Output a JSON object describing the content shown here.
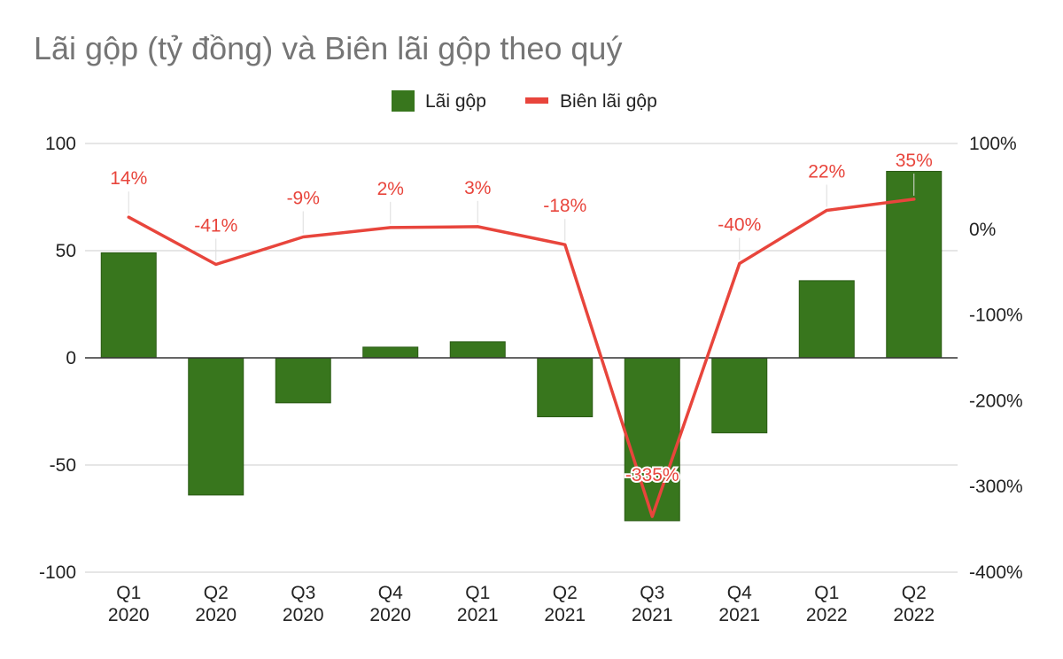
{
  "chart_data": {
    "type": "bar",
    "title": "Lãi gộp (tỷ đồng) và Biên lãi gộp theo quý",
    "categories": [
      [
        "Q1",
        "2020"
      ],
      [
        "Q2",
        "2020"
      ],
      [
        "Q3",
        "2020"
      ],
      [
        "Q4",
        "2020"
      ],
      [
        "Q1",
        "2021"
      ],
      [
        "Q2",
        "2021"
      ],
      [
        "Q3",
        "2021"
      ],
      [
        "Q4",
        "2021"
      ],
      [
        "Q1",
        "2022"
      ],
      [
        "Q2",
        "2022"
      ]
    ],
    "series": [
      {
        "name": "Lãi gộp",
        "type": "bar",
        "axis": "left",
        "color": "#38761d",
        "values": [
          49,
          -64,
          -21,
          5,
          7.5,
          -27.5,
          -76,
          -35,
          36,
          87
        ]
      },
      {
        "name": "Biên lãi gộp",
        "type": "line",
        "axis": "right",
        "color": "#e8453c",
        "values": [
          14,
          -41,
          -9,
          2,
          3,
          -18,
          -335,
          -40,
          22,
          35
        ],
        "data_labels": [
          "14%",
          "-41%",
          "-9%",
          "2%",
          "3%",
          "-18%",
          "-335%",
          "-40%",
          "22%",
          "35%"
        ]
      }
    ],
    "y_left": {
      "min": -100,
      "max": 100,
      "ticks": [
        "100",
        "50",
        "0",
        "-50",
        "-100"
      ]
    },
    "y_right": {
      "min": -400,
      "max": 100,
      "ticks": [
        "100%",
        "0%",
        "-100%",
        "-200%",
        "-300%",
        "-400%"
      ]
    },
    "grid": true,
    "legend_position": "top"
  }
}
